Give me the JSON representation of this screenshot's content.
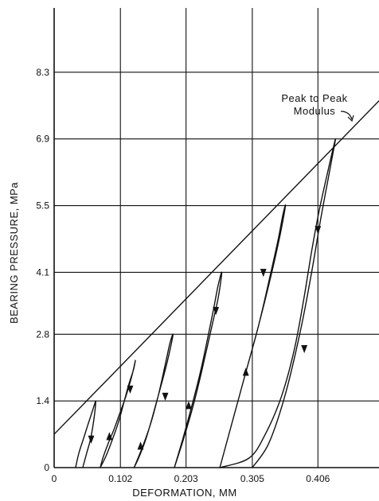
{
  "chart_data": {
    "type": "line",
    "title": "",
    "xlabel": "DEFORMATION, MM",
    "ylabel": "BEARING PRESSURE, MPa",
    "xlim": [
      0,
      0.5
    ],
    "ylim": [
      0,
      9.65
    ],
    "x_ticks": [
      0,
      0.102,
      0.203,
      0.305,
      0.406
    ],
    "x_tick_labels": [
      "0",
      "0.102",
      "0.203",
      "0.305",
      "0.406"
    ],
    "y_ticks": [
      0,
      1.4,
      2.8,
      4.1,
      5.5,
      6.9,
      8.3
    ],
    "y_tick_labels": [
      "0",
      "1.4",
      "2.8",
      "4.1",
      "5.5",
      "6.9",
      "8.3"
    ],
    "grid": true,
    "annotations": [
      {
        "text_lines": [
          "Peak to Peak",
          "Modulus"
        ],
        "target": "peak-to-peak-modulus-line"
      }
    ],
    "modulus_line": {
      "x": [
        0,
        0.5
      ],
      "y": [
        0.7,
        7.7
      ]
    },
    "series": [
      {
        "x": [
          0.033,
          0.038,
          0.045,
          0.052,
          0.058,
          0.062,
          0.064,
          0.061,
          0.056,
          0.05,
          0.044
        ],
        "y": [
          0,
          0.3,
          0.6,
          0.9,
          1.15,
          1.32,
          1.38,
          1.0,
          0.6,
          0.3,
          0.0
        ]
      },
      {
        "x": [
          0.071,
          0.08,
          0.09,
          0.1,
          0.108,
          0.115,
          0.122,
          0.125,
          0.121,
          0.115,
          0.108,
          0.1,
          0.092,
          0.083,
          0.075,
          0.071
        ],
        "y": [
          0,
          0.25,
          0.6,
          1.0,
          1.4,
          1.75,
          2.05,
          2.25,
          2.0,
          1.7,
          1.4,
          1.1,
          0.8,
          0.5,
          0.2,
          0
        ]
      },
      {
        "x": [
          0.123,
          0.135,
          0.148,
          0.16,
          0.17,
          0.178,
          0.183,
          0.178,
          0.17,
          0.16,
          0.15,
          0.14,
          0.13,
          0.123
        ],
        "y": [
          0,
          0.4,
          0.9,
          1.5,
          2.1,
          2.6,
          2.8,
          2.45,
          2.0,
          1.5,
          1.0,
          0.55,
          0.2,
          0
        ]
      },
      {
        "x": [
          0.185,
          0.198,
          0.212,
          0.225,
          0.236,
          0.245,
          0.252,
          0.258,
          0.253,
          0.245,
          0.235,
          0.225,
          0.212,
          0.198,
          0.185
        ],
        "y": [
          0,
          0.6,
          1.3,
          2.0,
          2.7,
          3.3,
          3.8,
          4.1,
          3.6,
          3.1,
          2.5,
          1.9,
          1.2,
          0.55,
          0
        ]
      },
      {
        "x": [
          0.255,
          0.275,
          0.295,
          0.315,
          0.332,
          0.345,
          0.352,
          0.356,
          0.348,
          0.335,
          0.315,
          0.295,
          0.275,
          0.255
        ],
        "y": [
          0,
          1.0,
          2.0,
          3.0,
          4.0,
          4.8,
          5.3,
          5.5,
          4.9,
          4.1,
          3.0,
          2.0,
          1.0,
          0
        ]
      },
      {
        "x": [
          0.305,
          0.33,
          0.355,
          0.378,
          0.395,
          0.41,
          0.425,
          0.433,
          0.421,
          0.408,
          0.397,
          0.385,
          0.37,
          0.35,
          0.325,
          0.3,
          0.255
        ],
        "y": [
          0,
          0.5,
          1.5,
          2.8,
          4.0,
          5.2,
          6.3,
          6.9,
          6.2,
          5.4,
          4.6,
          3.6,
          2.5,
          1.5,
          0.7,
          0.2,
          0
        ]
      }
    ],
    "direction_arrows": [
      {
        "x": 0.057,
        "y": 0.6,
        "dir": "down"
      },
      {
        "x": 0.085,
        "y": 0.65,
        "dir": "up"
      },
      {
        "x": 0.117,
        "y": 1.65,
        "dir": "down"
      },
      {
        "x": 0.133,
        "y": 0.45,
        "dir": "up"
      },
      {
        "x": 0.171,
        "y": 1.5,
        "dir": "down"
      },
      {
        "x": 0.207,
        "y": 1.3,
        "dir": "up"
      },
      {
        "x": 0.249,
        "y": 3.3,
        "dir": "down"
      },
      {
        "x": 0.322,
        "y": 4.1,
        "dir": "down"
      },
      {
        "x": 0.295,
        "y": 2.0,
        "dir": "up"
      },
      {
        "x": 0.406,
        "y": 5.0,
        "dir": "down"
      },
      {
        "x": 0.385,
        "y": 2.5,
        "dir": "down"
      }
    ]
  }
}
